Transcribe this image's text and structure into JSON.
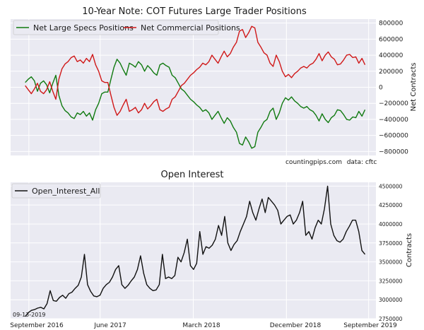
{
  "chart_data": [
    {
      "type": "line",
      "title": "10-Year Note: COT Futures Large Trader Positions",
      "ylabel": "Net Contracts",
      "ylim": [
        -850000,
        850000
      ],
      "yticks": [
        800000,
        600000,
        400000,
        200000,
        0,
        -200000,
        -400000,
        -600000,
        -800000
      ],
      "ytick_labels": [
        "800000",
        "600000",
        "400000",
        "200000",
        "0",
        "−200000",
        "−400000",
        "−600000",
        "−800000"
      ],
      "y_axis_position": "right",
      "grid": true,
      "legend": "top-left",
      "annotations": [
        "countingpips.com",
        "data: cftc"
      ],
      "series": [
        {
          "name": "Net Large Specs Positions",
          "color": "#107a10",
          "values": [
            60000,
            100000,
            130000,
            80000,
            -50000,
            50000,
            80000,
            30000,
            -70000,
            50000,
            150000,
            -100000,
            -230000,
            -290000,
            -320000,
            -370000,
            -390000,
            -320000,
            -340000,
            -300000,
            -360000,
            -320000,
            -410000,
            -280000,
            -200000,
            -80000,
            -60000,
            -60000,
            100000,
            250000,
            350000,
            300000,
            220000,
            150000,
            300000,
            280000,
            250000,
            320000,
            280000,
            200000,
            270000,
            230000,
            180000,
            150000,
            280000,
            300000,
            270000,
            250000,
            150000,
            120000,
            50000,
            -20000,
            -50000,
            -100000,
            -150000,
            -180000,
            -220000,
            -250000,
            -300000,
            -280000,
            -320000,
            -400000,
            -350000,
            -300000,
            -380000,
            -450000,
            -380000,
            -420000,
            -500000,
            -560000,
            -700000,
            -720000,
            -620000,
            -680000,
            -760000,
            -740000,
            -560000,
            -500000,
            -430000,
            -400000,
            -300000,
            -260000,
            -400000,
            -320000,
            -200000,
            -130000,
            -160000,
            -120000,
            -170000,
            -200000,
            -240000,
            -260000,
            -240000,
            -280000,
            -300000,
            -350000,
            -420000,
            -330000,
            -400000,
            -440000,
            -380000,
            -350000,
            -280000,
            -290000,
            -340000,
            -400000,
            -410000,
            -370000,
            -380000,
            -300000,
            -360000,
            -280000
          ]
        },
        {
          "name": "Net Commercial Positions",
          "color": "#d01818",
          "values": [
            20000,
            -30000,
            -80000,
            -20000,
            50000,
            -50000,
            -80000,
            -30000,
            70000,
            -50000,
            -150000,
            100000,
            230000,
            290000,
            320000,
            370000,
            390000,
            320000,
            340000,
            300000,
            360000,
            320000,
            410000,
            280000,
            200000,
            80000,
            60000,
            60000,
            -100000,
            -250000,
            -350000,
            -300000,
            -220000,
            -150000,
            -300000,
            -280000,
            -250000,
            -320000,
            -280000,
            -200000,
            -270000,
            -230000,
            -180000,
            -150000,
            -280000,
            -300000,
            -270000,
            -250000,
            -150000,
            -120000,
            -50000,
            20000,
            50000,
            100000,
            150000,
            180000,
            220000,
            250000,
            300000,
            280000,
            320000,
            400000,
            350000,
            300000,
            380000,
            450000,
            380000,
            420000,
            500000,
            560000,
            700000,
            720000,
            620000,
            680000,
            760000,
            740000,
            560000,
            500000,
            430000,
            400000,
            300000,
            260000,
            400000,
            320000,
            200000,
            130000,
            160000,
            120000,
            170000,
            200000,
            240000,
            260000,
            240000,
            280000,
            300000,
            350000,
            420000,
            330000,
            400000,
            440000,
            380000,
            350000,
            280000,
            290000,
            340000,
            400000,
            410000,
            370000,
            380000,
            300000,
            360000,
            280000
          ]
        }
      ]
    },
    {
      "type": "line",
      "title": "Open Interest",
      "ylabel": "Contracts",
      "ylim": [
        2750000,
        4550000
      ],
      "yticks": [
        2750000,
        3000000,
        3250000,
        3500000,
        3750000,
        4000000,
        4250000,
        4500000
      ],
      "ytick_labels": [
        "2750000",
        "3000000",
        "3250000",
        "3500000",
        "3750000",
        "4000000",
        "4250000",
        "4500000"
      ],
      "y_axis_position": "right",
      "grid": true,
      "legend": "top-left",
      "annotations": [
        "09-13-2019"
      ],
      "x_tick_labels": [
        "September 2016",
        "June 2017",
        "March 2018",
        "December 2018",
        "September 2019"
      ],
      "series": [
        {
          "name": "Open_Interest_All",
          "color": "#111111",
          "values": [
            2780000,
            2830000,
            2860000,
            2870000,
            2890000,
            2900000,
            2880000,
            2950000,
            3120000,
            2990000,
            2980000,
            3030000,
            3060000,
            3020000,
            3080000,
            3100000,
            3150000,
            3190000,
            3300000,
            3600000,
            3200000,
            3110000,
            3050000,
            3040000,
            3060000,
            3150000,
            3200000,
            3230000,
            3300000,
            3400000,
            3450000,
            3200000,
            3150000,
            3190000,
            3250000,
            3300000,
            3400000,
            3580000,
            3350000,
            3200000,
            3150000,
            3120000,
            3130000,
            3200000,
            3600000,
            3280000,
            3300000,
            3280000,
            3320000,
            3560000,
            3500000,
            3620000,
            3800000,
            3450000,
            3400000,
            3480000,
            3900000,
            3600000,
            3700000,
            3680000,
            3720000,
            3800000,
            3980000,
            3850000,
            4100000,
            3750000,
            3650000,
            3730000,
            3780000,
            3900000,
            4000000,
            4100000,
            4300000,
            4150000,
            4050000,
            4200000,
            4330000,
            4150000,
            4350000,
            4300000,
            4250000,
            4180000,
            4000000,
            4050000,
            4100000,
            4120000,
            4000000,
            4050000,
            4150000,
            4300000,
            3850000,
            3900000,
            3800000,
            3950000,
            4050000,
            4000000,
            4200000,
            4500000,
            4000000,
            3850000,
            3780000,
            3760000,
            3800000,
            3900000,
            3970000,
            4050000,
            4050000,
            3900000,
            3650000,
            3600000
          ]
        }
      ]
    }
  ]
}
